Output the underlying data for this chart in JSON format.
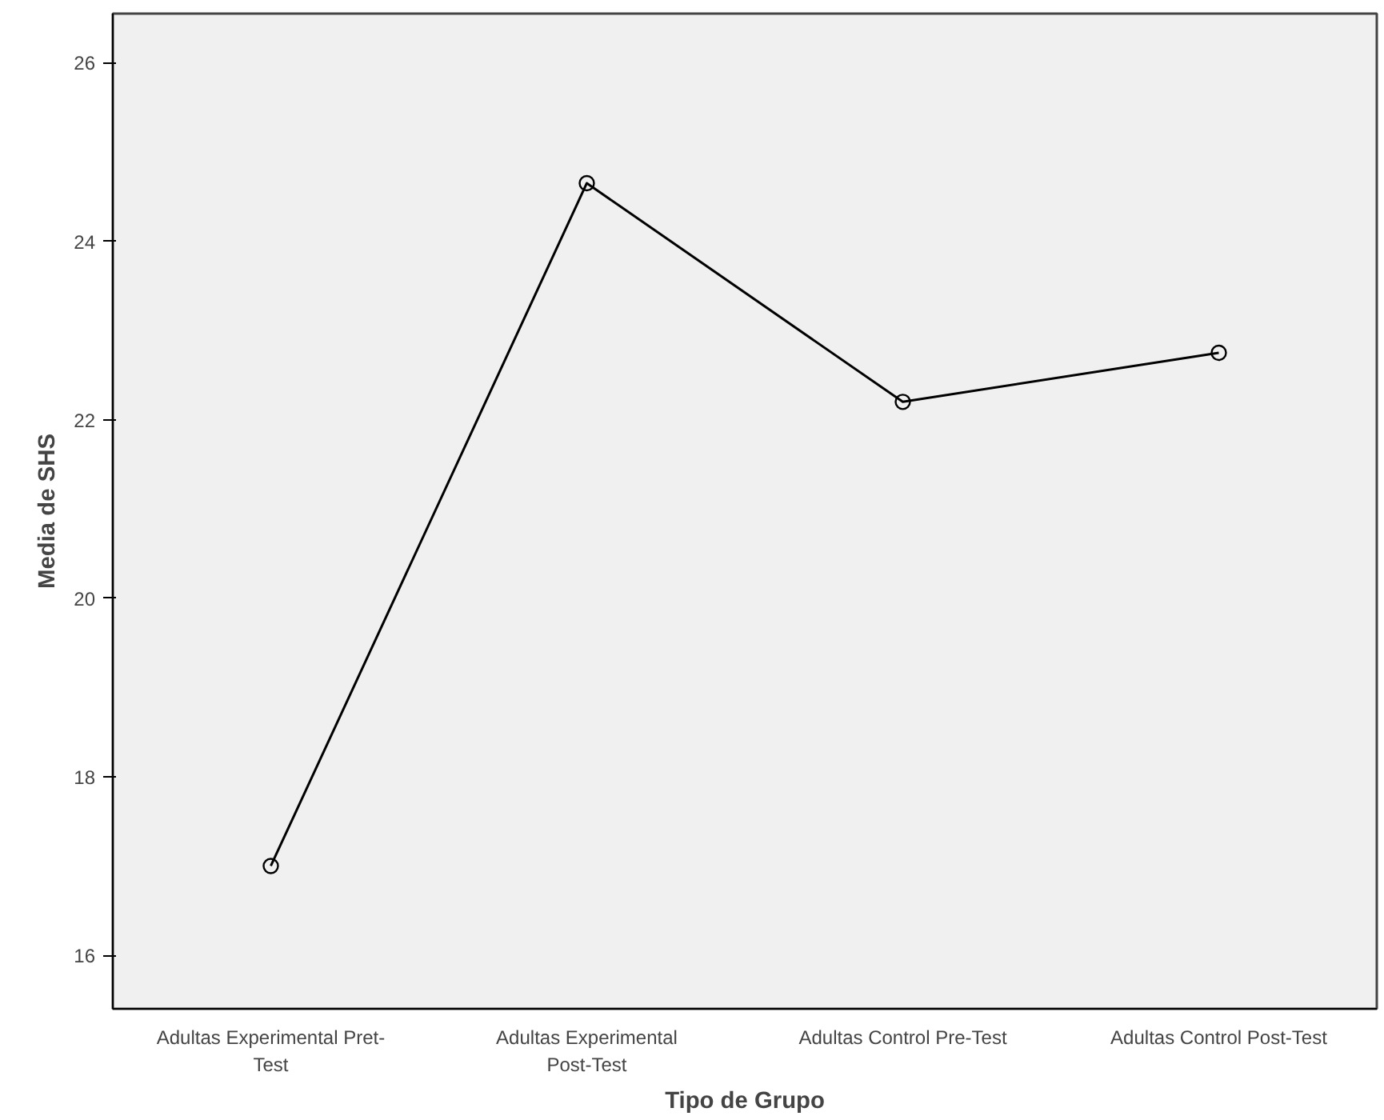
{
  "chart_data": {
    "type": "line",
    "xlabel": "Tipo de Grupo",
    "ylabel": "Media de SHS",
    "categories": [
      "Adultas Experimental Pret-\nTest",
      "Adultas Experimental\nPost-Test",
      "Adultas Control Pre-Test",
      "Adultas Control Post-Test"
    ],
    "series": [
      {
        "color": "#000000",
        "values": [
          17.0,
          24.65,
          22.2,
          22.75
        ]
      }
    ],
    "ylim": [
      15.4,
      26.55
    ],
    "yticks": [
      16,
      18,
      20,
      22,
      24,
      26
    ],
    "grid": false,
    "marker": "circle",
    "line_style": "solid"
  }
}
